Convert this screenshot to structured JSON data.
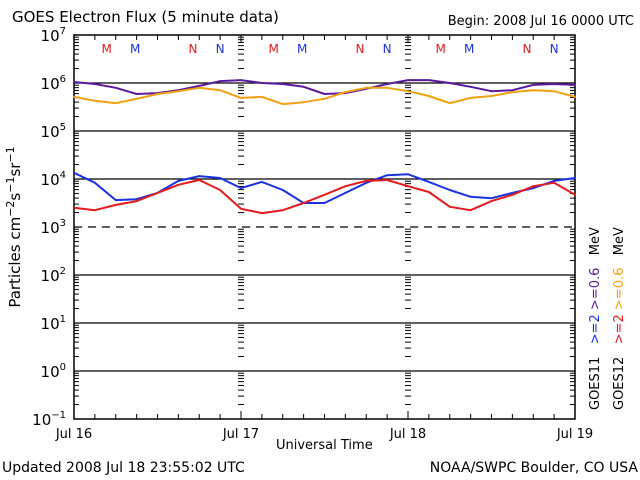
{
  "header": {
    "title": "GOES Electron Flux (5 minute data)",
    "begin": "Begin: 2008 Jul 16 0000 UTC"
  },
  "footer": {
    "updated": "Updated 2008 Jul 18 23:55:02 UTC",
    "source": "NOAA/SWPC Boulder, CO USA"
  },
  "legend": {
    "goes11": {
      "sat": "GOES11",
      "e2": ">=2",
      "e06": ">=0.6",
      "unit": "MeV",
      "e2_color": "#1a32e6",
      "e06_color": "#5a1aa0"
    },
    "goes12": {
      "sat": "GOES12",
      "e2": ">=2",
      "e06": ">=0.6",
      "unit": "MeV",
      "e2_color": "#e61a1a",
      "e06_color": "#f0a010"
    }
  },
  "chart_data": {
    "type": "line",
    "title": "GOES Electron Flux (5 minute data)",
    "xlabel": "Universal Time",
    "ylabel": "Particles cm^-2 s^-1 sr^-1",
    "yscale": "log",
    "ylim_log10": [
      -1,
      7
    ],
    "y_tick_exponents": [
      7,
      6,
      5,
      4,
      3,
      2,
      1,
      0,
      -1
    ],
    "x_unit": "hours since 2008 Jul 16 0000 UTC",
    "xlim": [
      0,
      72
    ],
    "x_tick_labels": [
      {
        "hour": 0,
        "label": "Jul 16"
      },
      {
        "hour": 24,
        "label": "Jul 17"
      },
      {
        "hour": 48,
        "label": "Jul 18"
      },
      {
        "hour": 72,
        "label": "Jul 19"
      }
    ],
    "minor_x_tick_hours": 3,
    "threshold_line_log10": 3,
    "x": [
      0,
      3,
      6,
      9,
      12,
      15,
      18,
      21,
      24,
      27,
      30,
      33,
      36,
      39,
      42,
      45,
      48,
      51,
      54,
      57,
      60,
      63,
      66,
      69,
      72
    ],
    "series": [
      {
        "name": "GOES11 >=0.6 MeV",
        "color": "#5a1aa0",
        "log10_values": [
          6.02,
          5.98,
          5.9,
          5.77,
          5.79,
          5.85,
          5.94,
          6.04,
          6.06,
          6.0,
          5.98,
          5.92,
          5.77,
          5.79,
          5.88,
          5.98,
          6.06,
          6.06,
          6.0,
          5.92,
          5.83,
          5.85,
          5.96,
          5.98,
          5.96
        ]
      },
      {
        "name": "GOES12 >=0.6 MeV",
        "color": "#f0a010",
        "log10_values": [
          5.71,
          5.63,
          5.58,
          5.67,
          5.77,
          5.83,
          5.9,
          5.85,
          5.69,
          5.71,
          5.56,
          5.6,
          5.67,
          5.81,
          5.9,
          5.9,
          5.83,
          5.73,
          5.58,
          5.69,
          5.73,
          5.81,
          5.85,
          5.83,
          5.71
        ]
      },
      {
        "name": "GOES11 >=2 MeV",
        "color": "#1a32e6",
        "log10_values": [
          4.13,
          3.92,
          3.56,
          3.58,
          3.71,
          3.96,
          4.06,
          4.02,
          3.81,
          3.94,
          3.77,
          3.5,
          3.5,
          3.71,
          3.92,
          4.08,
          4.1,
          3.94,
          3.77,
          3.63,
          3.6,
          3.71,
          3.81,
          3.96,
          4.02
        ]
      },
      {
        "name": "GOES12 >=2 MeV",
        "color": "#e61a1a",
        "log10_values": [
          3.4,
          3.35,
          3.46,
          3.54,
          3.71,
          3.88,
          3.98,
          3.77,
          3.38,
          3.29,
          3.35,
          3.5,
          3.67,
          3.85,
          3.96,
          3.98,
          3.85,
          3.73,
          3.42,
          3.35,
          3.54,
          3.67,
          3.85,
          3.92,
          3.67
        ]
      }
    ],
    "satellite_markers": [
      {
        "label": "M",
        "color": "#e61a1a",
        "hours": [
          4.7,
          28.7,
          52.7
        ]
      },
      {
        "label": "M",
        "color": "#1a32e6",
        "hours": [
          8.8,
          32.8,
          56.8
        ]
      },
      {
        "label": "N",
        "color": "#e61a1a",
        "hours": [
          17.1,
          41.1,
          65.1
        ]
      },
      {
        "label": "N",
        "color": "#1a32e6",
        "hours": [
          21.0,
          45.0,
          69.0
        ]
      }
    ]
  }
}
